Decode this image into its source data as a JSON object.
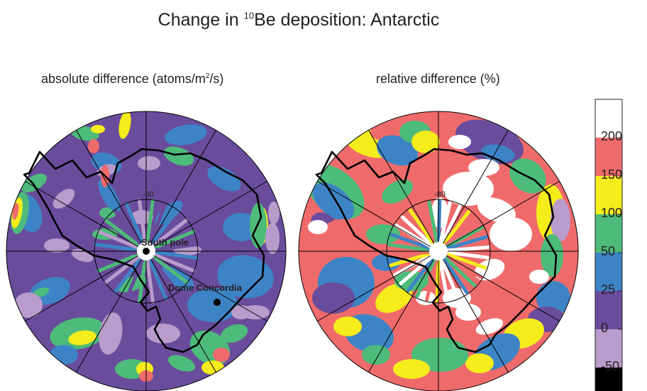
{
  "title": {
    "prefix": "Change in ",
    "superscript": "10",
    "suffix": "Be deposition: Antarctic"
  },
  "colors": {
    "black": "#000000",
    "lavender": "#b99ccb",
    "purple": "#6a4c9c",
    "blue": "#3d84c6",
    "green": "#4dbb79",
    "yellow": "#f4ec1b",
    "red": "#ef6b6b",
    "white": "#ffffff"
  },
  "chart_data": {
    "type": "heatmap",
    "projection": "south polar stereographic",
    "panels": [
      {
        "id": "absolute",
        "title_prefix": "absolute difference (atoms/m",
        "title_sup": "2",
        "title_suffix": "/s)",
        "latitude_circle_label": "-80",
        "annotations": [
          {
            "label": "South pole",
            "marker": "dot"
          },
          {
            "label": "Dome Concordia",
            "marker": "dot"
          }
        ],
        "dominant_bins": [
          "0 to 25",
          "25 to 50",
          "-50 to 0"
        ]
      },
      {
        "id": "relative",
        "title": "relative difference (%)",
        "latitude_circle_label": "-80",
        "annotations": [],
        "dominant_bins": [
          "150 to 200",
          "200+",
          "50 to 100",
          "0 to 25"
        ]
      }
    ],
    "colorbar": {
      "tick_labels": [
        "200",
        "150",
        "100",
        "50",
        "25",
        "0",
        "-50"
      ],
      "bins": [
        {
          "range": "> 200",
          "color": "#ffffff"
        },
        {
          "range": "150 to 200",
          "color": "#ef6b6b"
        },
        {
          "range": "100 to 150",
          "color": "#f4ec1b"
        },
        {
          "range": "50 to 100",
          "color": "#4dbb79"
        },
        {
          "range": "25 to 50",
          "color": "#3d84c6"
        },
        {
          "range": "0 to 25",
          "color": "#6a4c9c"
        },
        {
          "range": "-50 to 0",
          "color": "#b99ccb"
        },
        {
          "range": "< -50",
          "color": "#000000"
        }
      ]
    },
    "grid": "meridians every 30 degrees, latitude circle at -80"
  }
}
